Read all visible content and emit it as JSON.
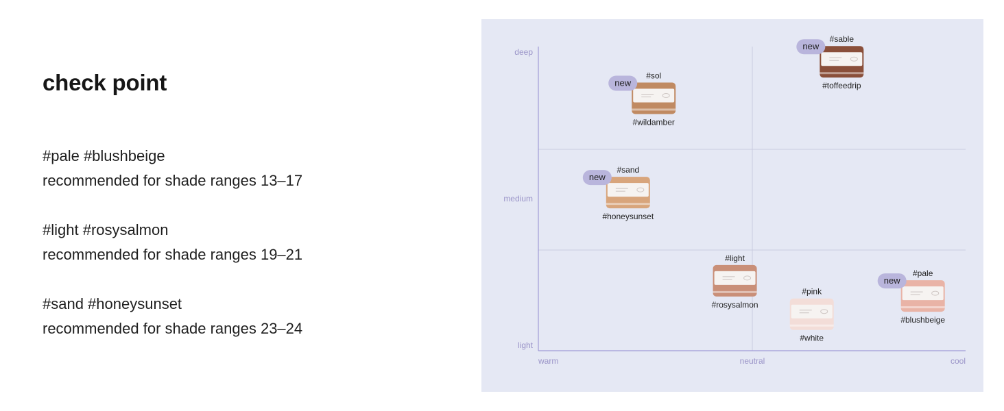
{
  "heading": "check point",
  "recommendations": [
    {
      "tags": "#pale #blushbeige",
      "text": "recommended for shade ranges 13–17"
    },
    {
      "tags": "#light #rosysalmon",
      "text": "recommended for shade ranges 19–21"
    },
    {
      "tags": "#sand #honeysunset",
      "text": "recommended for shade ranges 23–24"
    }
  ],
  "map": {
    "y_axis": {
      "levels": [
        "light",
        "medium",
        "deep"
      ]
    },
    "x_axis": {
      "levels": [
        "warm",
        "neutral",
        "cool"
      ]
    },
    "new_label": "new",
    "products": [
      {
        "top": "#sol",
        "bottom": "#wildamber",
        "is_new": true,
        "undertone": 0.27,
        "depth": 0.83,
        "shade_color": "#c08a62"
      },
      {
        "top": "#sable",
        "bottom": "#toffeedrip",
        "is_new": true,
        "undertone": 0.71,
        "depth": 0.95,
        "shade_color": "#8a4f3a"
      },
      {
        "top": "#sand",
        "bottom": "#honeysunset",
        "is_new": true,
        "undertone": 0.21,
        "depth": 0.52,
        "shade_color": "#d8a57c"
      },
      {
        "top": "#light",
        "bottom": "#rosysalmon",
        "is_new": false,
        "undertone": 0.46,
        "depth": 0.23,
        "shade_color": "#c98f78"
      },
      {
        "top": "#pink",
        "bottom": "#white",
        "is_new": false,
        "undertone": 0.64,
        "depth": 0.12,
        "shade_color": "#f3ddd8"
      },
      {
        "top": "#pale",
        "bottom": "#blushbeige",
        "is_new": true,
        "undertone": 0.9,
        "depth": 0.18,
        "shade_color": "#e9b3a6"
      }
    ],
    "colors": {
      "panel": "#e5e8f4",
      "axis": "#a19bd6",
      "gridline": "#c9cbdf",
      "new_pill": "#b9b5dc"
    }
  }
}
